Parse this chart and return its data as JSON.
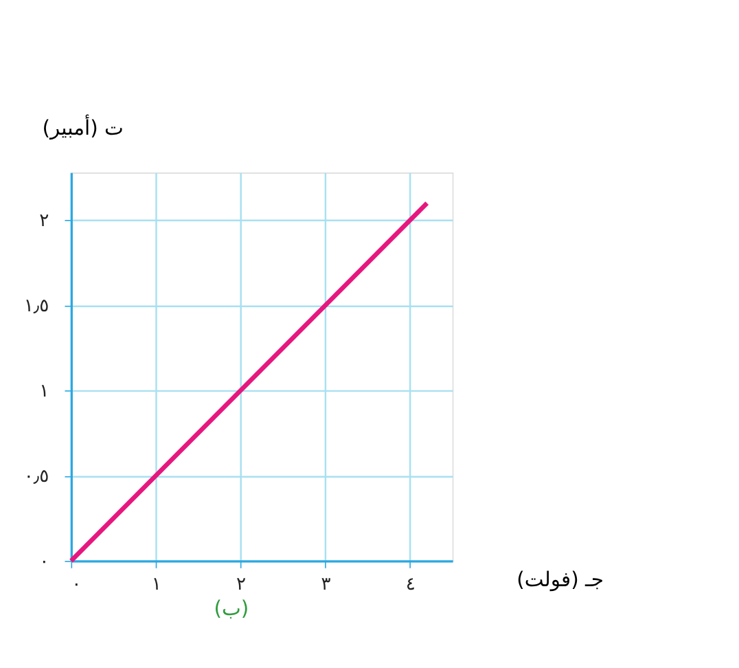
{
  "chart_data": {
    "type": "line",
    "xlabel": "جـ (فولت)",
    "ylabel": "ت (أمبير)",
    "x": [
      0,
      4.2
    ],
    "series": [
      {
        "color": "#e6177e",
        "values": [
          0,
          2.1
        ]
      }
    ],
    "xlim": [
      0,
      4.5
    ],
    "ylim": [
      0,
      2.28
    ],
    "xticks": [
      {
        "value": 0,
        "label": "٠"
      },
      {
        "value": 1,
        "label": "١"
      },
      {
        "value": 2,
        "label": "٢"
      },
      {
        "value": 3,
        "label": "٣"
      },
      {
        "value": 4,
        "label": "٤"
      }
    ],
    "yticks": [
      {
        "value": 0,
        "label": "٠"
      },
      {
        "value": 0.5,
        "label": "٠٫٥"
      },
      {
        "value": 1,
        "label": "١"
      },
      {
        "value": 1.5,
        "label": "١٫٥"
      },
      {
        "value": 2,
        "label": "٢"
      }
    ],
    "grid": true,
    "marker": "none",
    "line_style": "solid",
    "annotations": [
      "(ب)"
    ]
  }
}
